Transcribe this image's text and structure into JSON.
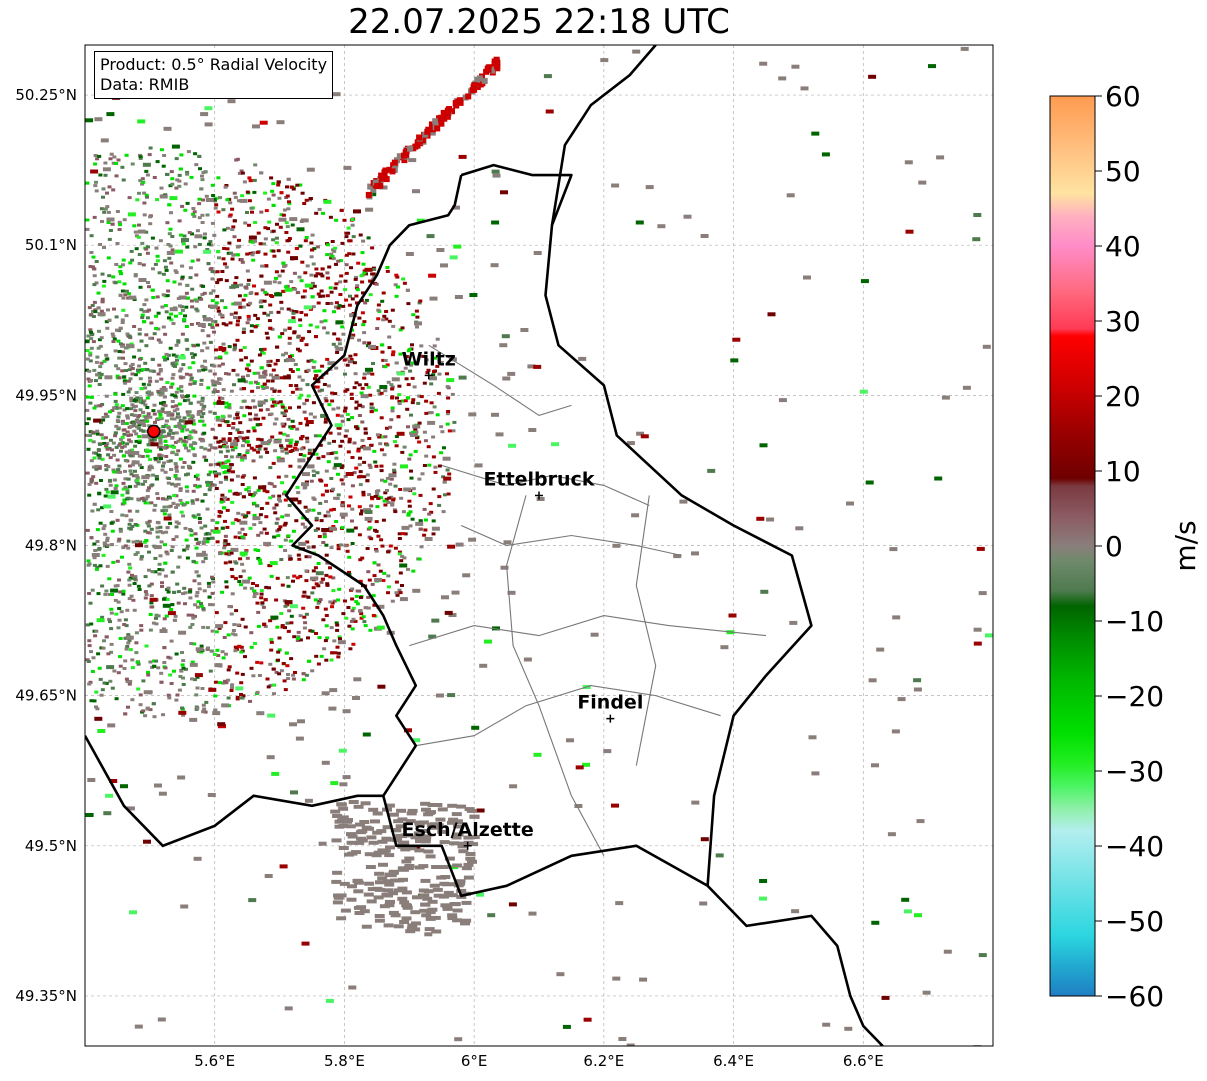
{
  "title": "22.07.2025 22:18 UTC",
  "info": {
    "product": "Product: 0.5° Radial Velocity",
    "data": "Data: RMIB"
  },
  "map": {
    "lon_range": [
      5.4,
      6.8
    ],
    "lat_range": [
      49.3,
      50.3
    ],
    "lon_ticks": [
      {
        "value": 5.6,
        "label": "5.6°E"
      },
      {
        "value": 5.8,
        "label": "5.8°E"
      },
      {
        "value": 6.0,
        "label": "6°E"
      },
      {
        "value": 6.2,
        "label": "6.2°E"
      },
      {
        "value": 6.4,
        "label": "6.4°E"
      },
      {
        "value": 6.6,
        "label": "6.6°E"
      }
    ],
    "lat_ticks": [
      {
        "value": 50.25,
        "label": "50.25°N"
      },
      {
        "value": 50.1,
        "label": "50.1°N"
      },
      {
        "value": 49.95,
        "label": "49.95°N"
      },
      {
        "value": 49.8,
        "label": "49.8°N"
      },
      {
        "value": 49.65,
        "label": "49.65°N"
      },
      {
        "value": 49.5,
        "label": "49.5°N"
      },
      {
        "value": 49.35,
        "label": "49.35°N"
      }
    ],
    "radar_site": {
      "lon": 5.506,
      "lat": 49.914,
      "color": "#ff0000"
    },
    "cities": [
      {
        "name": "Wiltz",
        "lon": 5.93,
        "lat": 49.97
      },
      {
        "name": "Ettelbruck",
        "lon": 6.1,
        "lat": 49.85
      },
      {
        "name": "Findel",
        "lon": 6.21,
        "lat": 49.627
      },
      {
        "name": "Esch/Alzette",
        "lon": 5.99,
        "lat": 49.5
      }
    ]
  },
  "colorbar": {
    "label": "m/s",
    "min": -60,
    "max": 60,
    "ticks": [
      {
        "value": 60,
        "label": "60"
      },
      {
        "value": 50,
        "label": "50"
      },
      {
        "value": 40,
        "label": "40"
      },
      {
        "value": 30,
        "label": "30"
      },
      {
        "value": 20,
        "label": "20"
      },
      {
        "value": 10,
        "label": "10"
      },
      {
        "value": 0,
        "label": "0"
      },
      {
        "value": -10,
        "label": "−10"
      },
      {
        "value": -20,
        "label": "−20"
      },
      {
        "value": -30,
        "label": "−30"
      },
      {
        "value": -40,
        "label": "−40"
      },
      {
        "value": -50,
        "label": "−50"
      },
      {
        "value": -60,
        "label": "−60"
      }
    ],
    "stops": [
      {
        "value": -60,
        "color": "#1f7fc4"
      },
      {
        "value": -56,
        "color": "#22a9d0"
      },
      {
        "value": -52,
        "color": "#2bd6e0"
      },
      {
        "value": -45,
        "color": "#6fe2e6"
      },
      {
        "value": -38,
        "color": "#b3eeef"
      },
      {
        "value": -35,
        "color": "#8ef0a8"
      },
      {
        "value": -32,
        "color": "#4bf463"
      },
      {
        "value": -29,
        "color": "#22ee22"
      },
      {
        "value": -25,
        "color": "#00e000"
      },
      {
        "value": -18,
        "color": "#00b800"
      },
      {
        "value": -12,
        "color": "#008a00"
      },
      {
        "value": -8,
        "color": "#006400"
      },
      {
        "value": -6,
        "color": "#4e7a4e"
      },
      {
        "value": -2,
        "color": "#6f8a6b"
      },
      {
        "value": 0,
        "color": "#8a7e7b"
      },
      {
        "value": 4,
        "color": "#8c5a62"
      },
      {
        "value": 8,
        "color": "#7a3a40"
      },
      {
        "value": 9,
        "color": "#6e0000"
      },
      {
        "value": 15,
        "color": "#990000"
      },
      {
        "value": 21,
        "color": "#cc0000"
      },
      {
        "value": 28,
        "color": "#ff0000"
      },
      {
        "value": 29,
        "color": "#ff3b55"
      },
      {
        "value": 34,
        "color": "#ff6a80"
      },
      {
        "value": 40,
        "color": "#ff8cc8"
      },
      {
        "value": 44,
        "color": "#ffb0c0"
      },
      {
        "value": 47,
        "color": "#ffe3a0"
      },
      {
        "value": 53,
        "color": "#ffc080"
      },
      {
        "value": 60,
        "color": "#ff9a50"
      }
    ]
  }
}
